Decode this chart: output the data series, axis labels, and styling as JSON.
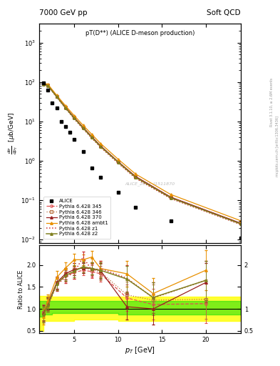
{
  "title_top": "7000 GeV pp",
  "title_top_right": "Soft QCD",
  "plot_title": "pT(D**) (ALICE D-meson production)",
  "ylabel_main": "dσ/dp_T  [μb/GeV]",
  "ylabel_ratio": "Ratio to ALICE",
  "xlabel": "p_T [GeV]",
  "watermark": "ALICE_2017_I1511870",
  "right_label": "mcplots.cern.ch [arXiv:1306.3436]",
  "right_label2": "Rivet 3.1.10, ≥ 2.6M events",
  "alice_x": [
    1.5,
    2.0,
    2.5,
    3.0,
    3.5,
    4.0,
    4.5,
    5.0,
    6.0,
    7.0,
    8.0,
    10.0,
    12.0,
    16.0,
    24.0
  ],
  "alice_y": [
    95,
    62,
    30,
    22,
    10,
    7.5,
    5.2,
    3.5,
    1.7,
    0.65,
    0.38,
    0.16,
    0.065,
    0.03,
    0.011
  ],
  "pt_x": [
    1.5,
    2.0,
    3.0,
    4.0,
    5.0,
    6.0,
    7.0,
    8.0,
    10.0,
    12.0,
    16.0,
    24.0
  ],
  "p345_y": [
    88,
    80,
    42,
    22,
    12,
    6.8,
    3.9,
    2.3,
    0.92,
    0.38,
    0.115,
    0.025
  ],
  "p346_y": [
    90,
    82,
    43,
    23,
    12.5,
    7.0,
    4.1,
    2.4,
    0.96,
    0.4,
    0.12,
    0.026
  ],
  "p370_y": [
    90,
    83,
    43,
    23,
    12.5,
    7.1,
    4.1,
    2.4,
    0.95,
    0.4,
    0.12,
    0.026
  ],
  "pambt1_y": [
    93,
    87,
    46,
    25,
    14,
    8.0,
    4.7,
    2.75,
    1.1,
    0.46,
    0.14,
    0.03
  ],
  "pz1_y": [
    87,
    79,
    41,
    21.5,
    11.5,
    6.5,
    3.75,
    2.2,
    0.87,
    0.36,
    0.11,
    0.024
  ],
  "pz2_y": [
    88,
    80,
    42,
    22,
    12,
    6.8,
    3.9,
    2.3,
    0.92,
    0.38,
    0.115,
    0.025
  ],
  "ratio_x": [
    1.5,
    2.0,
    3.0,
    4.0,
    5.0,
    6.0,
    7.0,
    8.0,
    11.0,
    14.0,
    20.0
  ],
  "ratio_345": [
    0.92,
    1.12,
    1.58,
    1.75,
    1.83,
    1.88,
    1.85,
    1.8,
    1.25,
    1.1,
    1.12
  ],
  "ratio_346": [
    0.92,
    1.13,
    1.6,
    1.8,
    1.9,
    1.93,
    1.9,
    1.84,
    1.32,
    1.2,
    1.22
  ],
  "ratio_370": [
    0.9,
    1.12,
    1.6,
    1.8,
    1.9,
    1.93,
    1.92,
    1.87,
    1.05,
    1.0,
    1.6
  ],
  "ratio_ambt1": [
    0.83,
    1.18,
    1.72,
    1.93,
    2.12,
    2.12,
    2.18,
    1.92,
    1.8,
    1.35,
    1.88
  ],
  "ratio_z1": [
    0.87,
    1.08,
    1.55,
    1.72,
    1.83,
    2.18,
    1.88,
    1.92,
    1.7,
    1.25,
    1.65
  ],
  "ratio_z2": [
    0.87,
    1.09,
    1.57,
    1.76,
    1.86,
    1.96,
    1.92,
    1.88,
    1.68,
    1.26,
    1.65
  ],
  "ratio_err_345": [
    0.18,
    0.15,
    0.14,
    0.13,
    0.14,
    0.12,
    0.14,
    0.18,
    0.3,
    0.35,
    0.45
  ],
  "ratio_err_346": [
    0.18,
    0.15,
    0.14,
    0.13,
    0.14,
    0.12,
    0.14,
    0.18,
    0.3,
    0.35,
    0.45
  ],
  "ratio_err_370": [
    0.18,
    0.15,
    0.14,
    0.13,
    0.14,
    0.12,
    0.14,
    0.18,
    0.3,
    0.35,
    0.45
  ],
  "ratio_err_ambt1": [
    0.18,
    0.15,
    0.14,
    0.13,
    0.14,
    0.12,
    0.14,
    0.18,
    0.3,
    0.35,
    0.45
  ],
  "ratio_err_z1": [
    0.18,
    0.15,
    0.14,
    0.13,
    0.14,
    0.12,
    0.14,
    0.18,
    0.3,
    0.35,
    0.45
  ],
  "ratio_err_z2": [
    0.18,
    0.15,
    0.14,
    0.13,
    0.14,
    0.12,
    0.14,
    0.18,
    0.3,
    0.35,
    0.45
  ],
  "band_yellow_edges": [
    1.0,
    1.5,
    2.5,
    5.0,
    10.0,
    20.0,
    24.0
  ],
  "band_yellow_lo": [
    0.5,
    0.73,
    0.73,
    0.75,
    0.73,
    0.73,
    0.73
  ],
  "band_yellow_hi": [
    1.3,
    1.3,
    1.28,
    1.28,
    1.28,
    1.28,
    1.28
  ],
  "band_green_edges": [
    1.0,
    1.5,
    2.5,
    5.0,
    10.0,
    20.0,
    24.0
  ],
  "band_green_lo": [
    0.82,
    0.88,
    0.9,
    0.9,
    0.88,
    0.88,
    0.88
  ],
  "band_green_hi": [
    1.18,
    1.18,
    1.18,
    1.18,
    1.18,
    1.18,
    1.18
  ],
  "color_345": "#e05050",
  "color_346": "#b87040",
  "color_370": "#992020",
  "color_ambt1": "#e89000",
  "color_z1": "#cc3333",
  "color_z2": "#808020",
  "ylim_main": [
    0.008,
    3000
  ],
  "ylim_ratio": [
    0.45,
    2.45
  ],
  "xlim": [
    1.0,
    24.0
  ],
  "xticks": [
    5,
    10,
    15,
    20
  ]
}
